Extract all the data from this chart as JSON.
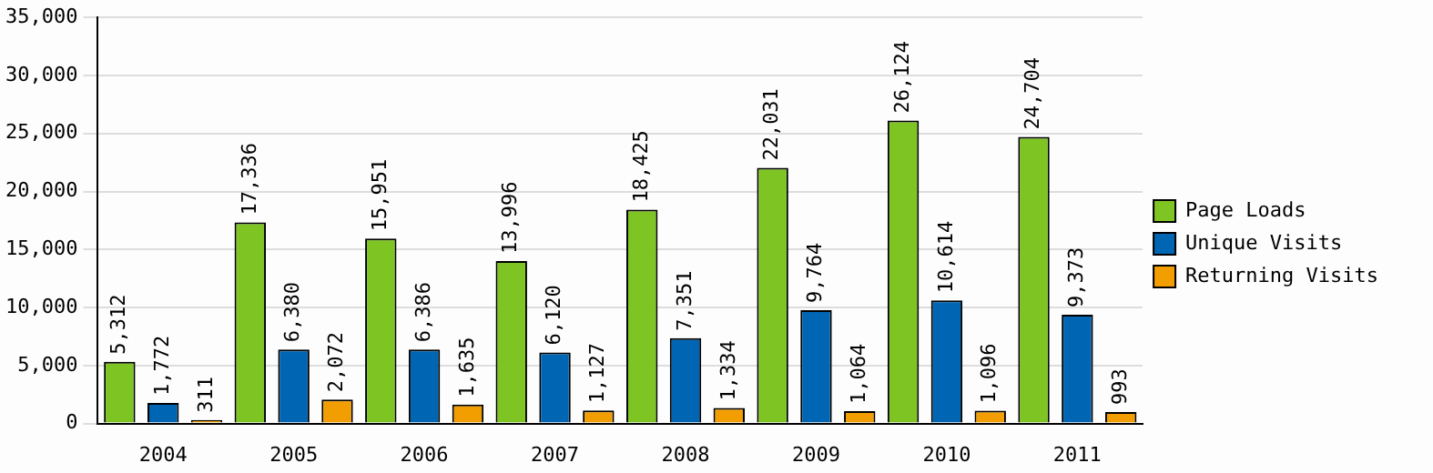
{
  "chart_data": {
    "type": "bar",
    "categories": [
      "2004",
      "2005",
      "2006",
      "2007",
      "2008",
      "2009",
      "2010",
      "2011"
    ],
    "series": [
      {
        "name": "Page Loads",
        "color": "#7ec423",
        "values": [
          5312,
          17336,
          15951,
          13996,
          18425,
          22031,
          26124,
          24704
        ],
        "value_labels": [
          "5,312",
          "17,336",
          "15,951",
          "13,996",
          "18,425",
          "22,031",
          "26,124",
          "24,704"
        ]
      },
      {
        "name": "Unique Visits",
        "color": "#0066b3",
        "values": [
          1772,
          6380,
          6386,
          6120,
          7351,
          9764,
          10614,
          9373
        ],
        "value_labels": [
          "1,772",
          "6,380",
          "6,386",
          "6,120",
          "7,351",
          "9,764",
          "10,614",
          "9,373"
        ]
      },
      {
        "name": "Returning Visits",
        "color": "#f29e00",
        "values": [
          311,
          2072,
          1635,
          1127,
          1334,
          1064,
          1096,
          993
        ],
        "value_labels": [
          "311",
          "2,072",
          "1,635",
          "1,127",
          "1,334",
          "1,064",
          "1,096",
          "993"
        ]
      }
    ],
    "ylim": [
      0,
      35000
    ],
    "yticks": [
      0,
      {
        "value": 5000,
        "label": "5,000"
      },
      {
        "value": 10000,
        "label": "10,000"
      },
      {
        "value": 15000,
        "label": "15,000"
      },
      {
        "value": 20000,
        "label": "20,000"
      },
      {
        "value": 25000,
        "label": "25,000"
      },
      {
        "value": 30000,
        "label": "30,000"
      },
      {
        "value": 35000,
        "label": "35,000"
      }
    ],
    "grid": "y",
    "legend": "right"
  }
}
